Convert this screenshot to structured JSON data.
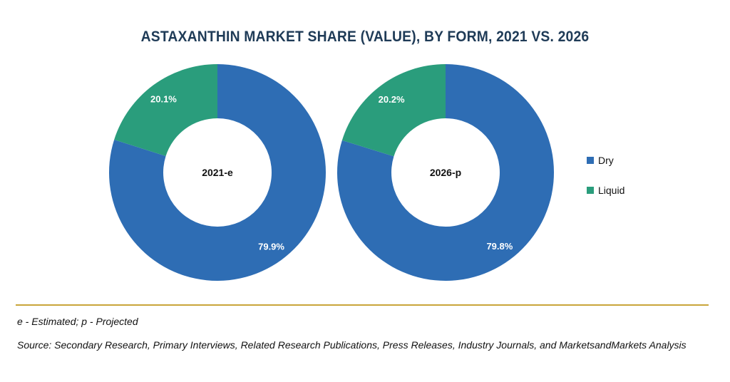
{
  "title": "ASTAXANTHIN MARKET SHARE (VALUE), BY FORM, 2021 VS. 2026",
  "colors": {
    "dry": "#2e6db4",
    "liquid": "#2a9d7c",
    "divider": "#c9a53a",
    "title": "#1f3b57"
  },
  "chart_data": [
    {
      "type": "pie",
      "center_label": "2021-e",
      "slices": [
        {
          "name": "Dry",
          "value": 79.9,
          "label": "79.9%"
        },
        {
          "name": "Liquid",
          "value": 20.1,
          "label": "20.1%"
        }
      ]
    },
    {
      "type": "pie",
      "center_label": "2026-p",
      "slices": [
        {
          "name": "Dry",
          "value": 79.8,
          "label": "79.8%"
        },
        {
          "name": "Liquid",
          "value": 20.2,
          "label": "20.2%"
        }
      ]
    }
  ],
  "legend": [
    {
      "name": "Dry",
      "color": "#2e6db4"
    },
    {
      "name": "Liquid",
      "color": "#2a9d7c"
    }
  ],
  "footnote": "e - Estimated; p - Projected",
  "source": "Source: Secondary Research, Primary Interviews, Related Research Publications, Press Releases, Industry Journals, and MarketsandMarkets Analysis"
}
